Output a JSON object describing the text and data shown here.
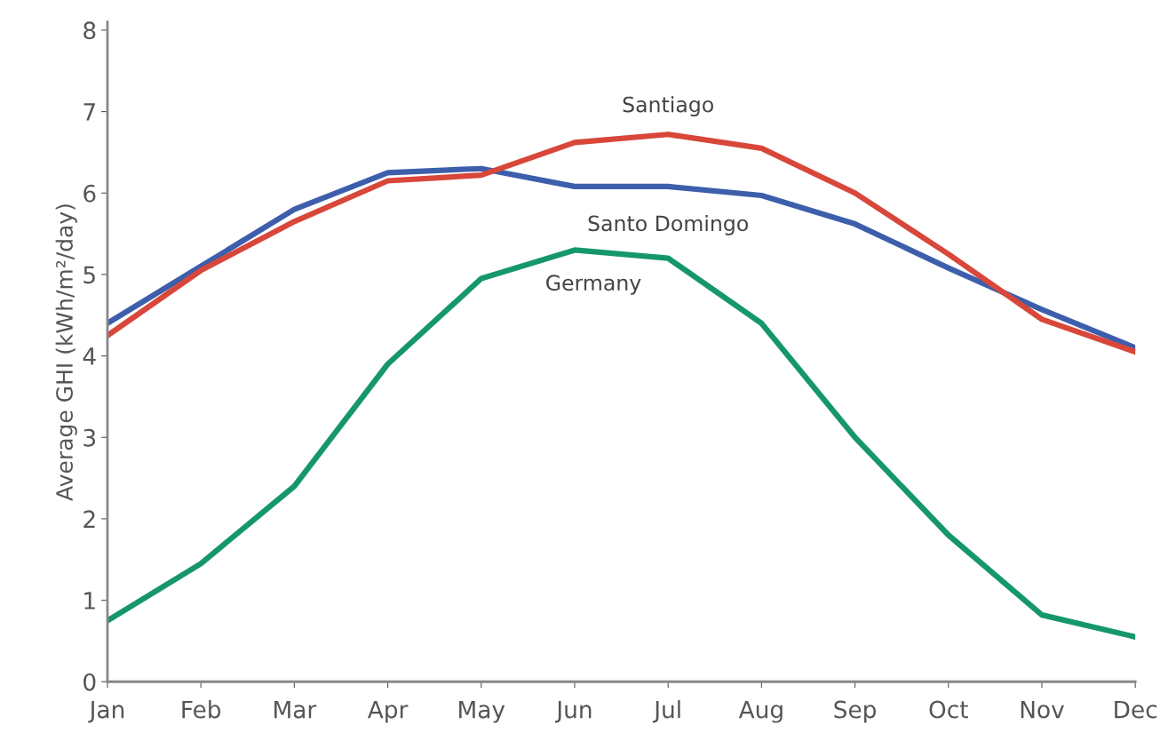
{
  "chart_data": {
    "type": "line",
    "ylabel": "Average GHI (kWh/m²/day)",
    "categories": [
      "Jan",
      "Feb",
      "Mar",
      "Apr",
      "May",
      "Jun",
      "Jul",
      "Aug",
      "Sep",
      "Oct",
      "Nov",
      "Dec"
    ],
    "series": [
      {
        "name": "Santo Domingo",
        "color": "#3d5eab",
        "values": [
          4.4,
          5.1,
          5.8,
          6.25,
          6.3,
          6.08,
          6.08,
          5.97,
          5.62,
          5.08,
          4.57,
          4.1
        ]
      },
      {
        "name": "Santiago",
        "color": "#d8473a",
        "values": [
          4.25,
          5.05,
          5.65,
          6.15,
          6.22,
          6.62,
          6.72,
          6.55,
          6.0,
          5.25,
          4.45,
          4.05
        ]
      },
      {
        "name": "Germany",
        "color": "#16976a",
        "values": [
          0.75,
          1.45,
          2.4,
          3.9,
          4.95,
          5.3,
          5.2,
          4.4,
          3.0,
          1.8,
          0.82,
          0.55
        ]
      }
    ],
    "ylim": [
      0,
      8.1
    ],
    "yticks": [
      0,
      1,
      2,
      3,
      4,
      5,
      6,
      7,
      8
    ],
    "grid": false,
    "legend": false,
    "marker": "none",
    "line_style": "solid"
  }
}
